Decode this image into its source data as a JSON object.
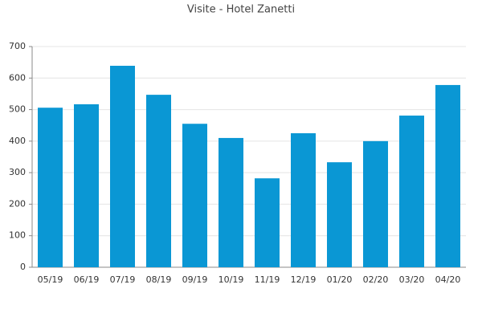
{
  "chart_data": {
    "type": "bar",
    "title": "Visite - Hotel Zanetti",
    "categories": [
      "05/19",
      "06/19",
      "07/19",
      "08/19",
      "09/19",
      "10/19",
      "11/19",
      "12/19",
      "01/20",
      "02/20",
      "03/20",
      "04/20"
    ],
    "values": [
      506,
      517,
      639,
      547,
      455,
      410,
      282,
      425,
      333,
      400,
      481,
      578
    ],
    "color": "#0a97d4",
    "ylim": [
      0,
      700
    ],
    "yticks": [
      0,
      100,
      200,
      300,
      400,
      500,
      600,
      700
    ],
    "grid": true
  }
}
